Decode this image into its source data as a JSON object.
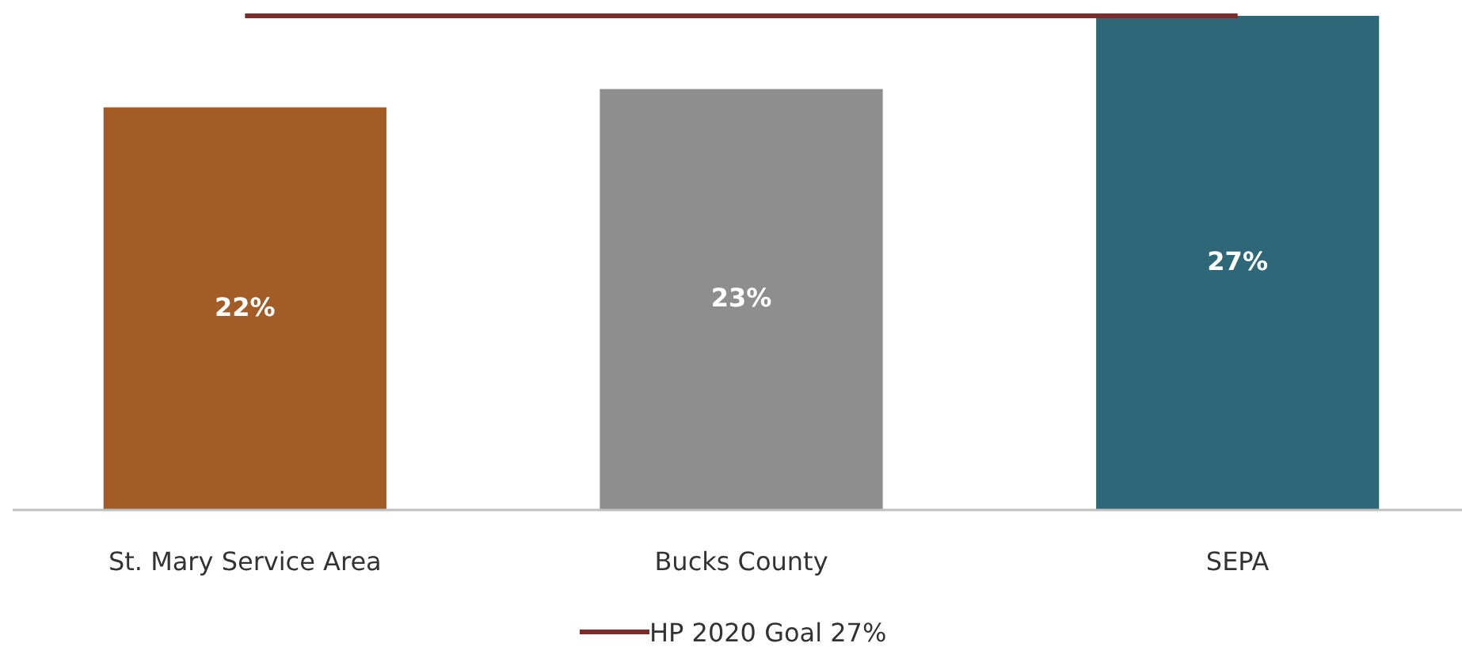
{
  "chart_data": {
    "type": "bar",
    "categories": [
      "St. Mary Service Area",
      "Bucks County",
      "SEPA"
    ],
    "values": [
      22,
      23,
      27
    ],
    "colors": [
      "#a45c27",
      "#8e8e8e",
      "#2e6878"
    ],
    "data_labels": true,
    "value_labels": [
      "22%",
      "23%",
      "27%"
    ],
    "ref_lines": [
      {
        "axis": "y",
        "value": 27,
        "label": "HP 2020 Goal 27%",
        "color": "#7e2b2b"
      }
    ],
    "legend": "bottom"
  }
}
